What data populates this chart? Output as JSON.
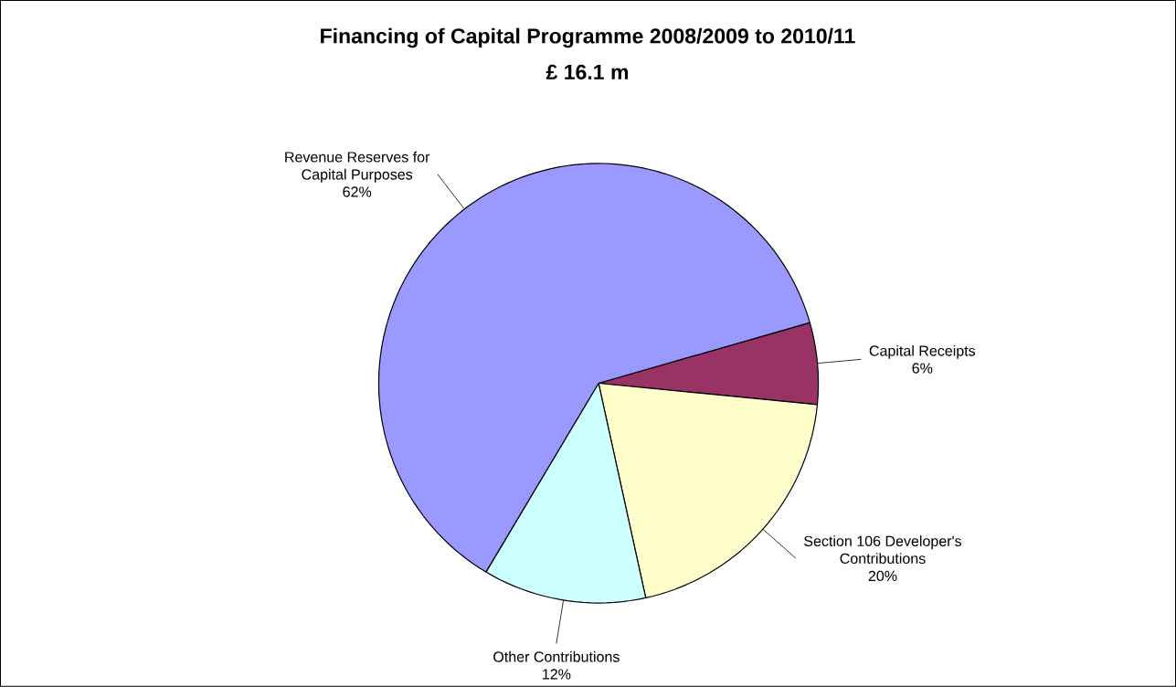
{
  "chart_data": {
    "type": "pie",
    "title": "Financing of Capital Programme 2008/2009 to 2010/11",
    "subtitle": "£ 16.1 m",
    "categories": [
      "Capital Receipts",
      "Section 106 Developer's Contributions",
      "Other Contributions",
      "Revenue Reserves for Capital Purposes"
    ],
    "values": [
      6,
      20,
      12,
      62
    ],
    "colors": [
      "#993366",
      "#ffffcc",
      "#ccffff",
      "#9999ff"
    ],
    "value_labels": [
      "6%",
      "20%",
      "12%",
      "62%"
    ]
  }
}
